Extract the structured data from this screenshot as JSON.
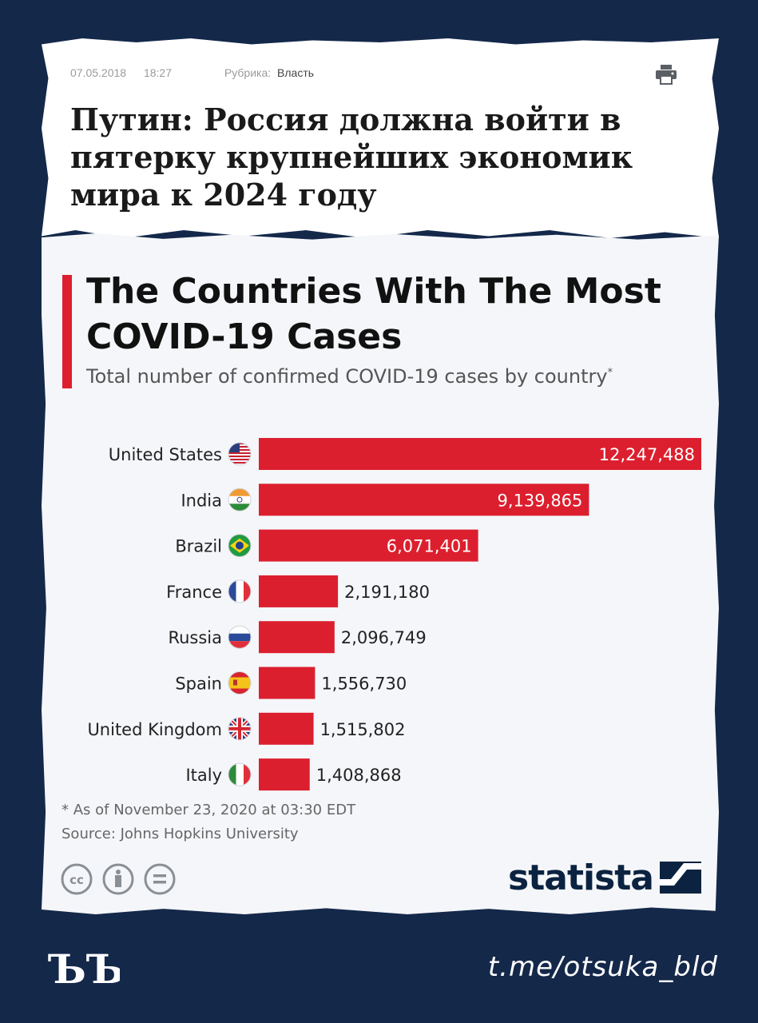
{
  "news": {
    "date": "07.05.2018",
    "time": "18:27",
    "rubric_label": "Рубрика:",
    "rubric_value": "Власть",
    "print_icon": "printer-icon",
    "title": "Путин: Россия должна войти в пятерку крупнейших экономик мира к 2024 году"
  },
  "chart_data": {
    "type": "bar",
    "orientation": "horizontal",
    "title": "The Countries With The Most COVID-19 Cases",
    "subtitle": "Total number of confirmed COVID-19 cases by country",
    "subtitle_mark": "*",
    "categories": [
      "United States",
      "India",
      "Brazil",
      "France",
      "Russia",
      "Spain",
      "United Kingdom",
      "Italy"
    ],
    "values": [
      12247488,
      9139865,
      6071401,
      2191180,
      2096749,
      1556730,
      1515802,
      1408868
    ],
    "value_labels": [
      "12,247,488",
      "9,139,865",
      "6,071,401",
      "2,191,180",
      "2,096,749",
      "1,556,730",
      "1,515,802",
      "1,408,868"
    ],
    "flags": [
      "us-flag-icon",
      "india-flag-icon",
      "brazil-flag-icon",
      "france-flag-icon",
      "russia-flag-icon",
      "spain-flag-icon",
      "uk-flag-icon",
      "italy-flag-icon"
    ],
    "bar_color": "#dc1f2e",
    "xlim": [
      0,
      12247488
    ],
    "grid": false,
    "legend": "none",
    "footnote": "* As of November 23, 2020 at 03:30 EDT",
    "source": "Source: Johns Hopkins University"
  },
  "license_icons": [
    "cc-icon",
    "attribution-icon",
    "no-derivatives-icon"
  ],
  "publisher": "statista",
  "footer": {
    "brand_logo": "ЪЪ",
    "channel": "t.me/otsuka_bld"
  },
  "colors": {
    "background": "#14284a",
    "accent": "#dc1f2e",
    "statista_navy": "#0b2340"
  }
}
